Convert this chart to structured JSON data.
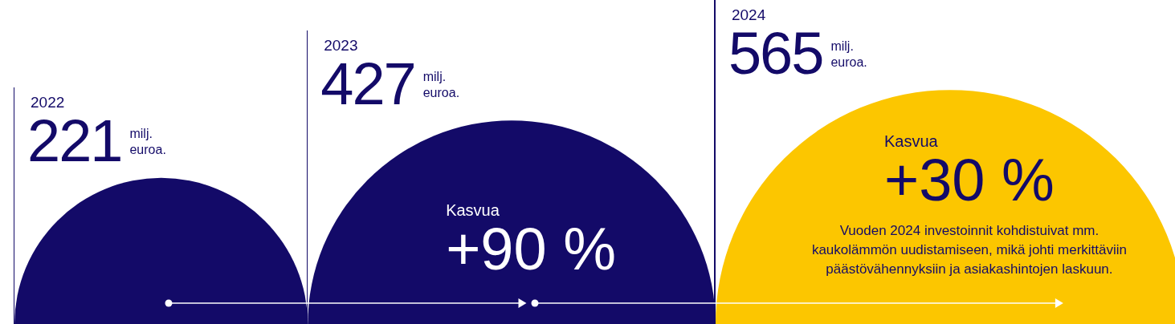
{
  "chart_data": {
    "type": "other",
    "categories": [
      "2022",
      "2023",
      "2024"
    ],
    "values": [
      221,
      427,
      565
    ],
    "colors": [
      "#130a68",
      "#130a68",
      "#fcc600"
    ],
    "value_labels": [
      "221",
      "427",
      "565"
    ],
    "ylabel": "milj. euroa.",
    "annotations": [
      "Kasvua",
      "+90 %",
      "Kasvua",
      "+30 %",
      "Vuoden 2024 investoinnit kohdistuivat mm. kaukolämmön uudistamiseen, mikä johti merkittäviin päästövähennyksiin ja asiakashintojen laskuun."
    ]
  }
}
